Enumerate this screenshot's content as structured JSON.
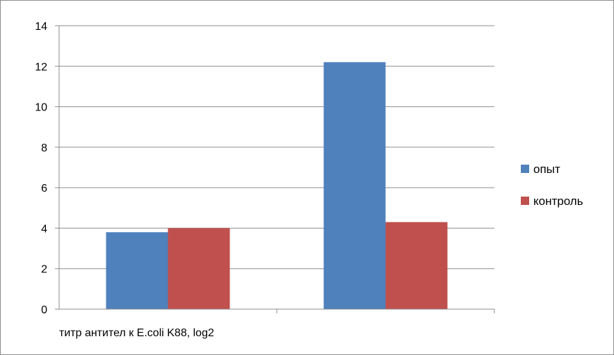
{
  "chart_data": {
    "type": "bar",
    "title": "",
    "xlabel": "",
    "ylabel": "",
    "categories": [
      "титр антител к E.coli K88, log2",
      ""
    ],
    "series": [
      {
        "name": "опыт",
        "color": "#4f81bd",
        "values": [
          3.8,
          12.2
        ]
      },
      {
        "name": "контроль",
        "color": "#c0504d",
        "values": [
          4.0,
          4.3
        ]
      }
    ],
    "ylim": [
      0,
      14
    ],
    "yticks": [
      0,
      2,
      4,
      6,
      8,
      10,
      12,
      14
    ],
    "grid": true,
    "legend_position": "right"
  }
}
